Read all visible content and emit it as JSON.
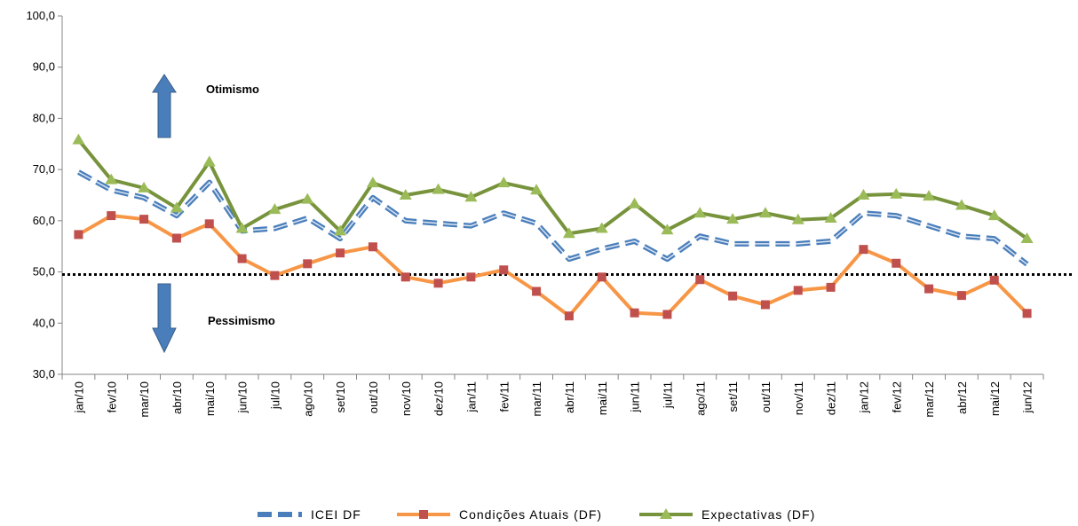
{
  "chart_data": {
    "type": "line",
    "categories": [
      "jan/10",
      "fev/10",
      "mar/10",
      "abr/10",
      "mai/10",
      "jun/10",
      "jul/10",
      "ago/10",
      "set/10",
      "out/10",
      "nov/10",
      "dez/10",
      "jan/11",
      "fev/11",
      "mar/11",
      "abr/11",
      "mai/11",
      "jun/11",
      "jul/11",
      "ago/11",
      "set/11",
      "out/11",
      "nov/11",
      "dez/11",
      "jan/12",
      "fev/12",
      "mar/12",
      "abr/12",
      "mai/12",
      "jun/12"
    ],
    "series": [
      {
        "name": "ICEI DF",
        "color": "#4a7ebb",
        "style": "dashed",
        "values": [
          69.5,
          66,
          64.5,
          61,
          67.5,
          58,
          58.5,
          60.5,
          56.5,
          64.5,
          60,
          59.5,
          59,
          61.5,
          59.5,
          52.5,
          54.5,
          56,
          52.5,
          57,
          55.5,
          55.5,
          55.5,
          56,
          61.5,
          61,
          59,
          57,
          56.5,
          51.5
        ]
      },
      {
        "name": "Condições Atuais (DF)",
        "color": "#f79646",
        "marker": "square",
        "marker_color": "#c0504d",
        "values": [
          57.3,
          61,
          60.3,
          56.6,
          59.4,
          52.6,
          49.3,
          51.6,
          53.7,
          54.9,
          49,
          47.8,
          49,
          50.4,
          46.2,
          41.4,
          49,
          42,
          41.7,
          48.5,
          45.3,
          43.6,
          46.4,
          47,
          54.4,
          51.7,
          46.7,
          45.4,
          48.4,
          41.9
        ]
      },
      {
        "name": "Expectativas (DF)",
        "color": "#77933c",
        "marker": "triangle",
        "marker_color": "#9bbb59",
        "values": [
          75.8,
          68,
          66.4,
          62.5,
          71.5,
          58.5,
          62.2,
          64.2,
          58,
          67.4,
          65,
          66.1,
          64.6,
          67.4,
          66,
          57.5,
          58.5,
          63.3,
          58.2,
          61.5,
          60.3,
          61.5,
          60.2,
          60.5,
          65,
          65.2,
          64.8,
          63,
          61,
          56.5
        ]
      }
    ],
    "ylim": [
      30,
      100
    ],
    "yticks": [
      {
        "value": 30,
        "label": "30,0"
      },
      {
        "value": 40,
        "label": "40,0"
      },
      {
        "value": 50,
        "label": "50,0"
      },
      {
        "value": 60,
        "label": "60,0"
      },
      {
        "value": 70,
        "label": "70,0"
      },
      {
        "value": 80,
        "label": "80,0"
      },
      {
        "value": 90,
        "label": "90,0"
      },
      {
        "value": 100,
        "label": "100,0"
      }
    ],
    "reference_line": 49.5,
    "annotations": [
      "Otimismo",
      "Pessimismo"
    ],
    "legend": "bottom"
  }
}
